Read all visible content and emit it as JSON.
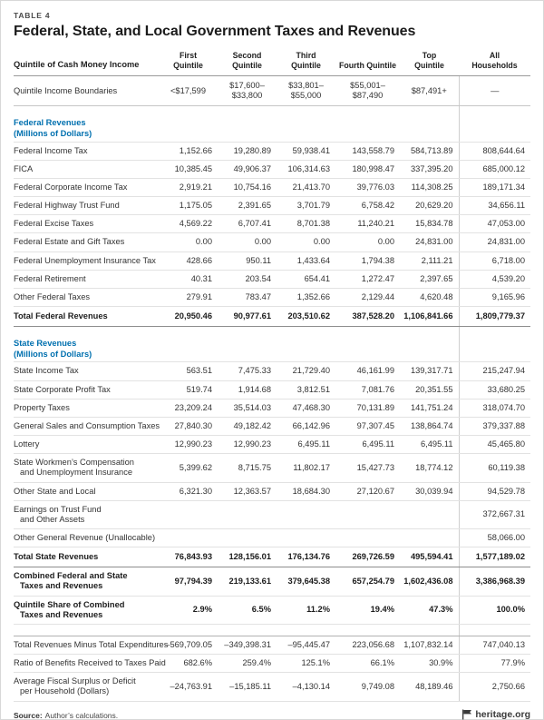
{
  "page": {
    "table_label": "TABLE 4",
    "title": "Federal, State, and Local Government Taxes and Revenues",
    "footer": {
      "source_label": "Source:",
      "source_text": "Author’s calculations.",
      "brand": "heritage.org"
    }
  },
  "colors": {
    "section_heading": "#0070AF",
    "title_text": "#1B1B1B"
  },
  "table": {
    "header_label": "Quintile of Cash Money Income",
    "columns": [
      "First\nQuintile",
      "Second\nQuintile",
      "Third\nQuintile",
      "Fourth Quintile",
      "Top\nQuintile",
      "All\nHouseholds"
    ],
    "rows": [
      {
        "type": "boundary",
        "label": "Quintile Income Boundaries",
        "values": [
          "<$17,599",
          "$17,600–\n$33,800",
          "$33,801–\n$55,000",
          "$55,001–\n$87,490",
          "$87,491+",
          "—"
        ]
      },
      {
        "type": "section",
        "label": "Federal Revenues",
        "sublabel": "(Millions of Dollars)"
      },
      {
        "type": "data",
        "label": "Federal Income Tax",
        "values": [
          "1,152.66",
          "19,280.89",
          "59,938.41",
          "143,558.79",
          "584,713.89",
          "808,644.64"
        ]
      },
      {
        "type": "data",
        "label": "FICA",
        "values": [
          "10,385.45",
          "49,906.37",
          "106,314.63",
          "180,998.47",
          "337,395.20",
          "685,000.12"
        ]
      },
      {
        "type": "data",
        "label": "Federal Corporate Income Tax",
        "values": [
          "2,919.21",
          "10,754.16",
          "21,413.70",
          "39,776.03",
          "114,308.25",
          "189,171.34"
        ]
      },
      {
        "type": "data",
        "label": "Federal Highway Trust Fund",
        "values": [
          "1,175.05",
          "2,391.65",
          "3,701.79",
          "6,758.42",
          "20,629.20",
          "34,656.11"
        ]
      },
      {
        "type": "data",
        "label": "Federal Excise Taxes",
        "values": [
          "4,569.22",
          "6,707.41",
          "8,701.38",
          "11,240.21",
          "15,834.78",
          "47,053.00"
        ]
      },
      {
        "type": "data",
        "label": "Federal Estate and Gift Taxes",
        "values": [
          "0.00",
          "0.00",
          "0.00",
          "0.00",
          "24,831.00",
          "24,831.00"
        ]
      },
      {
        "type": "data",
        "label": "Federal Unemployment Insurance Tax",
        "values": [
          "428.66",
          "950.11",
          "1,433.64",
          "1,794.38",
          "2,111.21",
          "6,718.00"
        ]
      },
      {
        "type": "data",
        "label": "Federal Retirement",
        "values": [
          "40.31",
          "203.54",
          "654.41",
          "1,272.47",
          "2,397.65",
          "4,539.20"
        ]
      },
      {
        "type": "data",
        "label": "Other Federal Taxes",
        "values": [
          "279.91",
          "783.47",
          "1,352.66",
          "2,129.44",
          "4,620.48",
          "9,165.96"
        ]
      },
      {
        "type": "total",
        "label": "Total Federal Revenues",
        "values": [
          "20,950.46",
          "90,977.61",
          "203,510.62",
          "387,528.20",
          "1,106,841.66",
          "1,809,779.37"
        ]
      },
      {
        "type": "section",
        "label": "State Revenues",
        "sublabel": "(Millions of Dollars)"
      },
      {
        "type": "data",
        "label": "State Income Tax",
        "values": [
          "563.51",
          "7,475.33",
          "21,729.40",
          "46,161.99",
          "139,317.71",
          "215,247.94"
        ]
      },
      {
        "type": "data",
        "label": "State Corporate Profit Tax",
        "values": [
          "519.74",
          "1,914.68",
          "3,812.51",
          "7,081.76",
          "20,351.55",
          "33,680.25"
        ]
      },
      {
        "type": "data",
        "label": "Property Taxes",
        "values": [
          "23,209.24",
          "35,514.03",
          "47,468.30",
          "70,131.89",
          "141,751.24",
          "318,074.70"
        ]
      },
      {
        "type": "data",
        "label": "General Sales and Consumption Taxes",
        "values": [
          "27,840.30",
          "49,182.42",
          "66,142.96",
          "97,307.45",
          "138,864.74",
          "379,337.88"
        ]
      },
      {
        "type": "data",
        "label": "Lottery",
        "values": [
          "12,990.23",
          "12,990.23",
          "6,495.11",
          "6,495.11",
          "6,495.11",
          "45,465.80"
        ]
      },
      {
        "type": "data",
        "label": "State Workmen’s Compensation",
        "label2": "and Unemployment Insurance",
        "values": [
          "5,399.62",
          "8,715.75",
          "11,802.17",
          "15,427.73",
          "18,774.12",
          "60,119.38"
        ]
      },
      {
        "type": "data",
        "label": "Other State and Local",
        "values": [
          "6,321.30",
          "12,363.57",
          "18,684.30",
          "27,120.67",
          "30,039.94",
          "94,529.78"
        ]
      },
      {
        "type": "data",
        "label": "Earnings on Trust Fund",
        "label2": "and Other Assets",
        "values": [
          "",
          "",
          "",
          "",
          "",
          "372,667.31"
        ]
      },
      {
        "type": "data",
        "label": "Other General Revenue (Unallocable)",
        "values": [
          "",
          "",
          "",
          "",
          "",
          "58,066.00"
        ]
      },
      {
        "type": "total",
        "label": "Total State Revenues",
        "values": [
          "76,843.93",
          "128,156.01",
          "176,134.76",
          "269,726.59",
          "495,594.41",
          "1,577,189.02"
        ]
      },
      {
        "type": "bold2",
        "label": "Combined Federal and State",
        "label2": "Taxes and Revenues",
        "values": [
          "97,794.39",
          "219,133.61",
          "379,645.38",
          "657,254.79",
          "1,602,436.08",
          "3,386,968.39"
        ]
      },
      {
        "type": "bold2",
        "label": "Quintile Share of Combined",
        "label2": "Taxes and Revenues",
        "values": [
          "2.9%",
          "6.5%",
          "11.2%",
          "19.4%",
          "47.3%",
          "100.0%"
        ]
      },
      {
        "type": "gap"
      },
      {
        "type": "data",
        "label": "Total Revenues Minus Total Expenditures",
        "values": [
          "–569,709.05",
          "–349,398.31",
          "–95,445.47",
          "223,056.68",
          "1,107,832.14",
          "747,040.13"
        ]
      },
      {
        "type": "data",
        "label": "Ratio of Benefits Received to Taxes Paid",
        "values": [
          "682.6%",
          "259.4%",
          "125.1%",
          "66.1%",
          "30.9%",
          "77.9%"
        ]
      },
      {
        "type": "data",
        "label": "Average Fiscal Surplus or Deficit",
        "label2": "per Household (Dollars)",
        "values": [
          "–24,763.91",
          "–15,185.11",
          "–4,130.14",
          "9,749.08",
          "48,189.46",
          "2,750.66"
        ]
      }
    ]
  }
}
